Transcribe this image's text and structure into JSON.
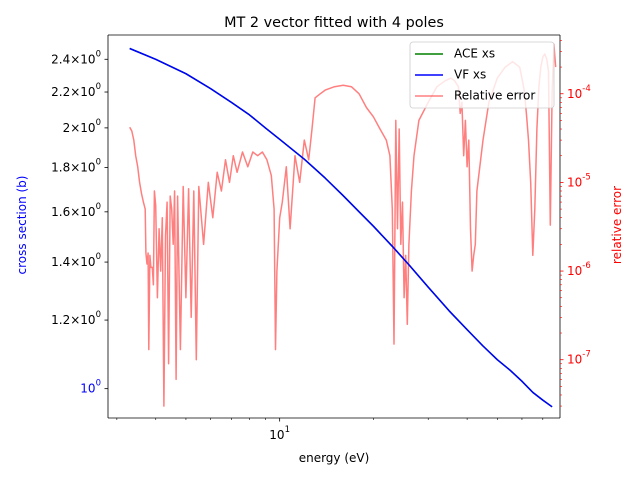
{
  "chart_data": {
    "type": "line",
    "title": "MT 2 vector fitted with 4 poles",
    "xlabel": "energy (eV)",
    "ylabel": "cross section (b)",
    "y2label": "relative error",
    "x_scale": "log",
    "y_scale": "log",
    "y2_scale": "log",
    "xlim": [
      2.81,
      79.5
    ],
    "ylim": [
      0.925,
      2.56
    ],
    "y2lim": [
      2.2e-08,
      0.00046
    ],
    "x_tick_labels": [
      {
        "value": 10,
        "label": "10^1"
      }
    ],
    "y_tick_labels": [
      {
        "value": 1.0,
        "label": "10^0"
      },
      {
        "value": 1.2,
        "label": "1.2×10^0"
      },
      {
        "value": 1.4,
        "label": "1.4×10^0"
      },
      {
        "value": 1.6,
        "label": "1.6×10^0"
      },
      {
        "value": 1.8,
        "label": "1.8×10^0"
      },
      {
        "value": 2.0,
        "label": "2×10^0"
      },
      {
        "value": 2.2,
        "label": "2.2×10^0"
      },
      {
        "value": 2.4,
        "label": "2.4×10^0"
      }
    ],
    "y2_tick_labels": [
      {
        "value": 1e-07,
        "label": "10^-7"
      },
      {
        "value": 1e-06,
        "label": "10^-6"
      },
      {
        "value": 1e-05,
        "label": "10^-5"
      },
      {
        "value": 0.0001,
        "label": "10^-4"
      }
    ],
    "legend": {
      "placement": "top-right"
    },
    "series": [
      {
        "name": "ACE xs",
        "axis": "left",
        "color": "#008000",
        "x": [
          3.3,
          4,
          5,
          6,
          7,
          8,
          9,
          10,
          12,
          14,
          16,
          18,
          20,
          23,
          26,
          30,
          35,
          40,
          45,
          50,
          55,
          60,
          65,
          70,
          75
        ],
        "y": [
          2.47,
          2.4,
          2.31,
          2.22,
          2.14,
          2.07,
          2.0,
          1.94,
          1.84,
          1.75,
          1.67,
          1.6,
          1.54,
          1.46,
          1.39,
          1.31,
          1.23,
          1.17,
          1.12,
          1.08,
          1.05,
          1.02,
          0.99,
          0.97,
          0.953
        ]
      },
      {
        "name": "VF xs",
        "axis": "left",
        "color": "#0000ff",
        "x": [
          3.3,
          4,
          5,
          6,
          7,
          8,
          9,
          10,
          12,
          14,
          16,
          18,
          20,
          23,
          26,
          30,
          35,
          40,
          45,
          50,
          55,
          60,
          65,
          70,
          75
        ],
        "y": [
          2.47,
          2.4,
          2.31,
          2.22,
          2.14,
          2.07,
          2.0,
          1.94,
          1.84,
          1.75,
          1.67,
          1.6,
          1.54,
          1.46,
          1.39,
          1.31,
          1.23,
          1.17,
          1.12,
          1.08,
          1.05,
          1.02,
          0.99,
          0.97,
          0.953
        ]
      },
      {
        "name": "Relative error",
        "axis": "right",
        "color": "#ff0000",
        "alpha": 0.5,
        "x": [
          3.3,
          3.35,
          3.4,
          3.45,
          3.5,
          3.55,
          3.6,
          3.65,
          3.7,
          3.72,
          3.75,
          3.78,
          3.8,
          3.83,
          3.86,
          3.9,
          3.93,
          3.96,
          4.0,
          4.05,
          4.1,
          4.15,
          4.2,
          4.25,
          4.3,
          4.35,
          4.4,
          4.45,
          4.5,
          4.55,
          4.6,
          4.65,
          4.7,
          4.8,
          4.9,
          5.0,
          5.1,
          5.2,
          5.3,
          5.4,
          5.5,
          5.7,
          5.9,
          6.1,
          6.3,
          6.5,
          6.7,
          6.9,
          7.1,
          7.3,
          7.6,
          7.9,
          8.2,
          8.5,
          8.8,
          9.1,
          9.4,
          9.6,
          9.7,
          9.8,
          9.9,
          10.0,
          10.2,
          10.5,
          10.8,
          11.2,
          11.6,
          12.0,
          12.4,
          12.7,
          13.0,
          13.5,
          14.0,
          15.0,
          16.0,
          17.0,
          18.0,
          19.0,
          20.0,
          21.0,
          22.0,
          22.6,
          23.0,
          23.3,
          23.6,
          23.9,
          24.2,
          24.5,
          24.8,
          25.1,
          25.4,
          25.7,
          26.0,
          26.5,
          27.0,
          28.0,
          30.0,
          32.0,
          34.0,
          35.5,
          36.5,
          37.5,
          38.0,
          38.5,
          39.0,
          39.5,
          40.0,
          40.5,
          41.0,
          41.5,
          42.0,
          42.5,
          43.0,
          45.0,
          47.0,
          50.0,
          53.0,
          56.0,
          59.0,
          60.0,
          61.0,
          62.0,
          63.0,
          64.0,
          65.0,
          66.0,
          67.0,
          68.0,
          69.0,
          70.0,
          71.0,
          72.0,
          73.0,
          74.0,
          75.0,
          76.0,
          77.0
        ],
        "y": [
          4.2e-05,
          3.8e-05,
          3e-05,
          2e-05,
          1.5e-05,
          1e-05,
          7.5e-06,
          6e-06,
          5e-06,
          1.6e-06,
          1.2e-06,
          1.6e-06,
          1.3e-07,
          1.5e-06,
          1.1e-06,
          1.1e-06,
          7e-07,
          8e-06,
          5.5e-06,
          5e-07,
          3e-06,
          1e-06,
          4e-06,
          3e-08,
          2.5e-06,
          6e-06,
          9e-08,
          7e-06,
          5e-06,
          2e-06,
          8e-06,
          6e-08,
          7e-06,
          1.3e-07,
          9e-06,
          5e-07,
          8.5e-06,
          3e-07,
          8e-06,
          1e-07,
          9e-06,
          2e-06,
          1e-05,
          4e-06,
          1.3e-05,
          8e-06,
          1.8e-05,
          1e-05,
          2e-05,
          1.3e-05,
          2.2e-05,
          1.5e-05,
          2.2e-05,
          2e-05,
          2.2e-05,
          1.8e-05,
          1.2e-05,
          5e-06,
          1.3e-07,
          1e-06,
          2e-06,
          4e-06,
          6e-06,
          1.5e-05,
          3e-06,
          2e-05,
          1e-05,
          3e-05,
          1.8e-05,
          4e-05,
          9e-05,
          0.0001,
          0.00011,
          0.00012,
          0.000125,
          0.00012,
          0.0001,
          7e-05,
          5.5e-05,
          4e-05,
          3e-05,
          2e-05,
          5e-06,
          1.5e-07,
          5e-05,
          3e-06,
          4e-05,
          2e-06,
          6e-06,
          5e-07,
          1.5e-06,
          2.5e-07,
          2e-06,
          8e-06,
          2e-05,
          5e-05,
          8e-05,
          0.00012,
          0.00014,
          0.00015,
          0.00014,
          0.00012,
          6e-05,
          8e-05,
          2e-05,
          5e-05,
          1.5e-05,
          3e-05,
          3e-06,
          1e-06,
          1.5e-06,
          2e-06,
          8e-06,
          3e-05,
          8e-05,
          0.00015,
          0.0002,
          0.00023,
          0.0002,
          0.00015,
          0.00011,
          6e-05,
          3e-05,
          1e-05,
          1.5e-06,
          5e-06,
          4e-05,
          0.00012,
          0.0002,
          0.00026,
          0.00028,
          0.00025,
          0.00018,
          3.3e-06,
          0.0001,
          0.00036,
          0.0002
        ]
      }
    ]
  }
}
